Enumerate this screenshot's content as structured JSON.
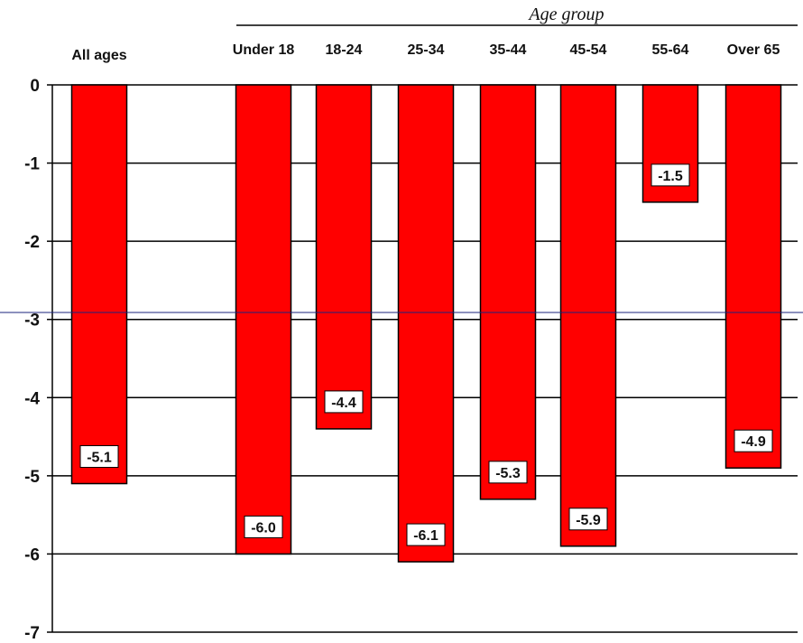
{
  "chart_data": {
    "type": "bar",
    "group_label": "Age group",
    "categories": [
      "All ages",
      "Under 18",
      "18-24",
      "25-34",
      "35-44",
      "45-54",
      "55-64",
      "Over 65"
    ],
    "values": [
      -5.1,
      -6.0,
      -4.4,
      -6.1,
      -5.3,
      -5.9,
      -1.5,
      -4.9
    ],
    "value_labels": [
      "-5.1",
      "-6.0",
      "-4.4",
      "-6.1",
      "-5.3",
      "-5.9",
      "-1.5",
      "-4.9"
    ],
    "yticks": [
      "0",
      "-1",
      "-2",
      "-3",
      "-4",
      "-5",
      "-6",
      "-7"
    ],
    "ylim": [
      -7,
      0
    ],
    "grid": true,
    "bar_color": "#ff0000",
    "grid_color": "#000000",
    "overlay_line_color": "#1a237e"
  }
}
